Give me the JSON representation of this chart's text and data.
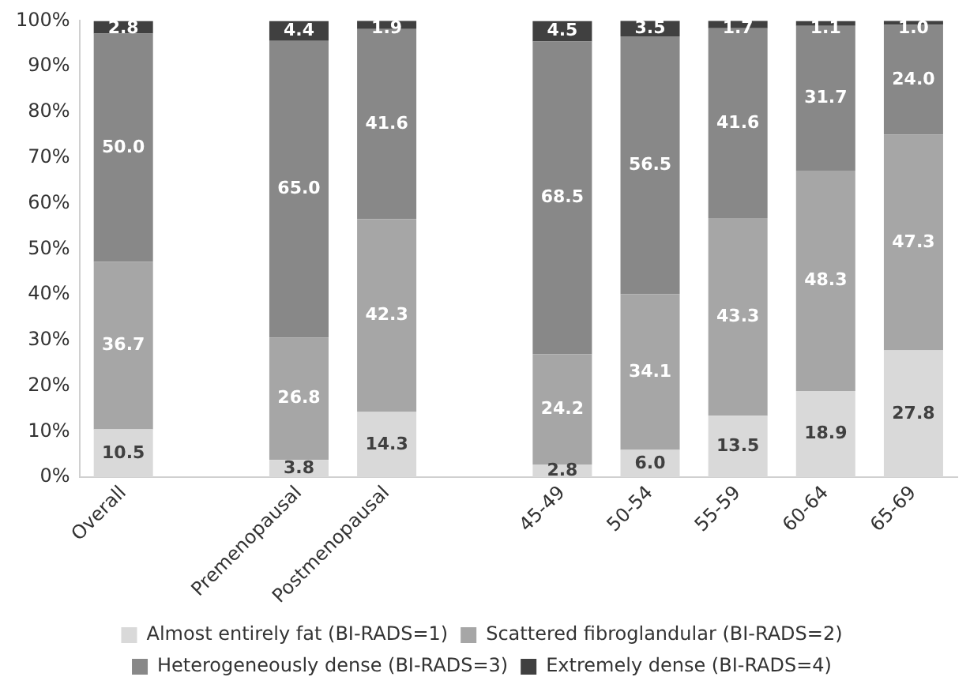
{
  "chart_data": {
    "type": "bar",
    "stacked": true,
    "categories": [
      "Overall",
      null,
      "Premenopausal",
      "Postmenopausal",
      null,
      "45-49",
      "50-54",
      "55-59",
      "60-64",
      "65-69"
    ],
    "series": [
      {
        "name": "Almost entirely fat (BI-RADS=1)",
        "color": "#d9d9d9",
        "values": [
          10.5,
          null,
          3.8,
          14.3,
          null,
          2.8,
          6.0,
          13.5,
          18.9,
          27.8
        ],
        "value_labels": [
          "10.5",
          null,
          "3.8",
          "14.3",
          null,
          "2.8",
          "6.0",
          "13.5",
          "18.9",
          "27.8"
        ]
      },
      {
        "name": "Scattered fibroglandular (BI-RADS=2)",
        "color": "#a6a6a6",
        "values": [
          36.7,
          null,
          26.8,
          42.3,
          null,
          24.2,
          34.1,
          43.3,
          48.3,
          47.3
        ],
        "value_labels": [
          "36.7",
          null,
          "26.8",
          "42.3",
          null,
          "24.2",
          "34.1",
          "43.3",
          "48.3",
          "47.3"
        ]
      },
      {
        "name": "Heterogeneously dense (BI-RADS=3)",
        "color": "#888888",
        "values": [
          50.0,
          null,
          65.0,
          41.6,
          null,
          68.5,
          56.5,
          41.6,
          31.7,
          24.0
        ],
        "value_labels": [
          "50.0",
          null,
          "65.0",
          "41.6",
          null,
          "68.5",
          "56.5",
          "41.6",
          "31.7",
          "24.0"
        ]
      },
      {
        "name": "Extremely dense (BI-RADS=4)",
        "color": "#404040",
        "values": [
          2.8,
          null,
          4.4,
          1.9,
          null,
          4.5,
          3.5,
          1.7,
          1.1,
          1.0
        ],
        "value_labels": [
          "2.8",
          null,
          "4.4",
          "1.9",
          null,
          "4.5",
          "3.5",
          "1.7",
          "1.1",
          "1.0"
        ]
      }
    ],
    "ylim": [
      0,
      100
    ],
    "yticks": [
      {
        "value": 0,
        "label": "0%"
      },
      {
        "value": 10,
        "label": "10%"
      },
      {
        "value": 20,
        "label": "20%"
      },
      {
        "value": 30,
        "label": "30%"
      },
      {
        "value": 40,
        "label": "40%"
      },
      {
        "value": 50,
        "label": "50%"
      },
      {
        "value": 60,
        "label": "60%"
      },
      {
        "value": 70,
        "label": "70%"
      },
      {
        "value": 80,
        "label": "80%"
      },
      {
        "value": 90,
        "label": "90%"
      },
      {
        "value": 100,
        "label": "100%"
      }
    ],
    "grid": false,
    "legend": "bottom"
  }
}
